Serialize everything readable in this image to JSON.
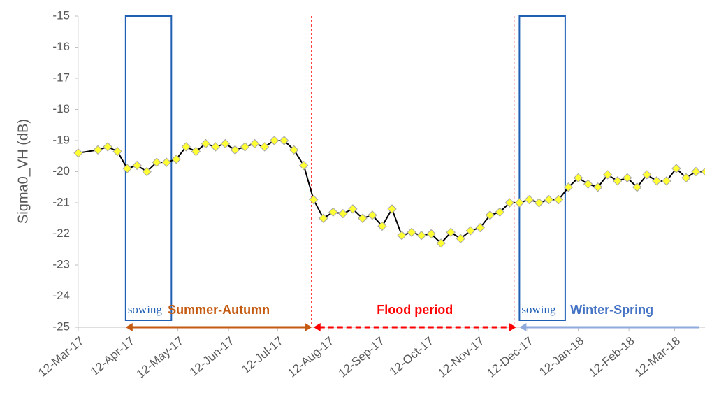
{
  "chart_data": {
    "type": "line",
    "ylabel": "Sigma0_VH (dB)",
    "ylim": [
      -25,
      -15
    ],
    "yticks": [
      -15,
      -16,
      -17,
      -18,
      -19,
      -20,
      -21,
      -22,
      -23,
      -24,
      -25
    ],
    "xlim": [
      "2017-03-12",
      "2018-03-31"
    ],
    "xticks": [
      {
        "value": "2017-03-12",
        "label": "12-Mar-17"
      },
      {
        "value": "2017-04-12",
        "label": "12-Apr-17"
      },
      {
        "value": "2017-05-12",
        "label": "12-May-17"
      },
      {
        "value": "2017-06-12",
        "label": "12-Jun-17"
      },
      {
        "value": "2017-07-12",
        "label": "12-Jul-17"
      },
      {
        "value": "2017-08-12",
        "label": "12-Aug-17"
      },
      {
        "value": "2017-09-12",
        "label": "12-Sep-17"
      },
      {
        "value": "2017-10-12",
        "label": "12-Oct-17"
      },
      {
        "value": "2017-11-12",
        "label": "12-Nov-17"
      },
      {
        "value": "2017-12-12",
        "label": "12-Dec-17"
      },
      {
        "value": "2018-01-12",
        "label": "12-Jan-18"
      },
      {
        "value": "2018-02-12",
        "label": "12-Feb-18"
      },
      {
        "value": "2018-03-12",
        "label": "12-Mar-18"
      }
    ],
    "x": [
      "2017-03-12",
      "2017-03-24",
      "2017-03-30",
      "2017-04-05",
      "2017-04-11",
      "2017-04-17",
      "2017-04-23",
      "2017-04-29",
      "2017-05-05",
      "2017-05-11",
      "2017-05-17",
      "2017-05-23",
      "2017-05-29",
      "2017-06-04",
      "2017-06-10",
      "2017-06-16",
      "2017-06-22",
      "2017-06-28",
      "2017-07-04",
      "2017-07-10",
      "2017-07-16",
      "2017-07-22",
      "2017-07-28",
      "2017-08-03",
      "2017-08-09",
      "2017-08-15",
      "2017-08-21",
      "2017-08-27",
      "2017-09-02",
      "2017-09-08",
      "2017-09-14",
      "2017-09-20",
      "2017-09-26",
      "2017-10-02",
      "2017-10-08",
      "2017-10-14",
      "2017-10-20",
      "2017-10-26",
      "2017-11-01",
      "2017-11-07",
      "2017-11-13",
      "2017-11-19",
      "2017-11-25",
      "2017-12-01",
      "2017-12-07",
      "2017-12-13",
      "2017-12-19",
      "2017-12-25",
      "2017-12-31",
      "2018-01-06",
      "2018-01-12",
      "2018-01-18",
      "2018-01-24",
      "2018-01-30",
      "2018-02-05",
      "2018-02-11",
      "2018-02-17",
      "2018-02-23",
      "2018-03-01",
      "2018-03-07",
      "2018-03-13",
      "2018-03-19",
      "2018-03-25",
      "2018-03-31"
    ],
    "series": [
      {
        "color": "#000000",
        "marker_color": "#ffff33",
        "values": [
          -19.4,
          -19.3,
          -19.2,
          -19.35,
          -19.9,
          -19.8,
          -20.0,
          -19.7,
          -19.7,
          -19.6,
          -19.2,
          -19.35,
          -19.1,
          -19.2,
          -19.1,
          -19.3,
          -19.2,
          -19.1,
          -19.2,
          -19.0,
          -19.0,
          -19.3,
          -19.8,
          -20.9,
          -21.5,
          -21.3,
          -21.35,
          -21.2,
          -21.5,
          -21.4,
          -21.75,
          -21.2,
          -22.05,
          -21.95,
          -22.05,
          -22.0,
          -22.3,
          -21.95,
          -22.15,
          -21.9,
          -21.8,
          -21.4,
          -21.3,
          -21.0,
          -21.0,
          -20.9,
          -21.0,
          -20.9,
          -20.9,
          -20.5,
          -20.2,
          -20.4,
          -20.5,
          -20.1,
          -20.3,
          -20.2,
          -20.5,
          -20.1,
          -20.3,
          -20.3,
          -19.9,
          -20.2,
          -20.0,
          -20.0
        ]
      }
    ],
    "boxes": [
      {
        "text": "sowing",
        "start": "2017-04-10",
        "end": "2017-05-08",
        "color": "#1f5fb4"
      },
      {
        "text": "sowing",
        "start": "2017-12-07",
        "end": "2018-01-04",
        "color": "#1f5fb4"
      }
    ],
    "periods": [
      {
        "text": "Summer-Autumn",
        "start": "2017-04-10",
        "end": "2017-08-02",
        "color": "#c55a11",
        "label_color": "#c55a11",
        "dashed": false
      },
      {
        "text": "Flood period",
        "start": "2017-08-03",
        "end": "2017-12-05",
        "color": "#ff0000",
        "label_color": "#ff0000",
        "dashed": true
      },
      {
        "text": "Winter-Spring",
        "start": "2017-12-07",
        "end": "2018-03-31",
        "color": "#8faadc",
        "label_color": "#4472c4",
        "dashed": false
      }
    ]
  }
}
